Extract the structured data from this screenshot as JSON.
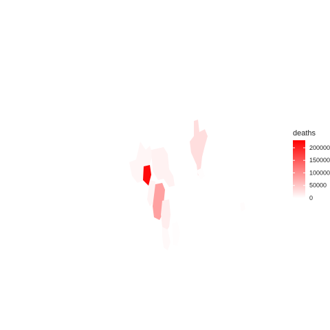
{
  "map": {
    "legend": {
      "title": "deaths",
      "min": 0,
      "max": 230000,
      "low_color": "#ffffff",
      "high_color": "#ff0000",
      "ticks": [
        {
          "value": 0,
          "label": "0"
        },
        {
          "value": 50000,
          "label": "50000"
        },
        {
          "value": 100000,
          "label": "100000"
        },
        {
          "value": 150000,
          "label": "150000"
        },
        {
          "value": 200000,
          "label": "200000"
        }
      ]
    },
    "regions": [
      {
        "id": "r1",
        "deaths": 8000
      },
      {
        "id": "r2",
        "deaths": 12000
      },
      {
        "id": "r3",
        "deaths": 222000
      },
      {
        "id": "r4",
        "deaths": 10000
      },
      {
        "id": "r5",
        "deaths": 85000
      },
      {
        "id": "r6",
        "deaths": 15000
      },
      {
        "id": "r7",
        "deaths": 5000
      },
      {
        "id": "r8",
        "deaths": 30000
      },
      {
        "id": "r9",
        "deaths": 2000
      },
      {
        "id": "r10",
        "deaths": 1500
      },
      {
        "id": "r11",
        "deaths": 3000
      }
    ]
  }
}
